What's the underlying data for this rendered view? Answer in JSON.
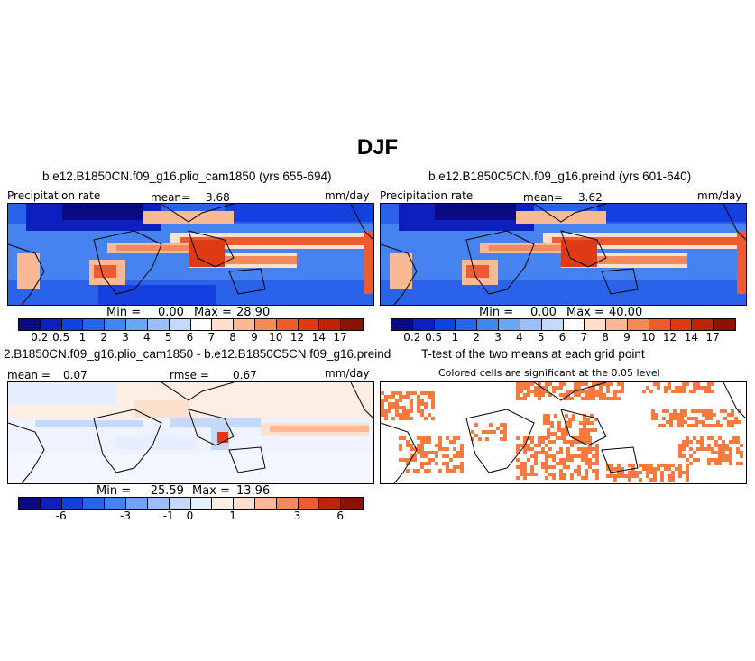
{
  "main_title": "DJF",
  "panels": {
    "top_left": {
      "title": "b.e12.B1850CN.f09_g16.plio_cam1850 (yrs 655-694)",
      "left_label": "Precipitation rate",
      "mean_label": "mean=",
      "mean_value": "3.68",
      "units": "mm/day",
      "min_label": "Min =",
      "min_value": "0.00",
      "max_label": "Max =",
      "max_value": "28.90"
    },
    "top_right": {
      "title": "b.e12.B1850C5CN.f09_g16.preind (yrs 601-640)",
      "left_label": "Precipitation rate",
      "mean_label": "mean=",
      "mean_value": "3.62",
      "units": "mm/day",
      "min_label": "Min =",
      "min_value": "0.00",
      "max_label": "Max =",
      "max_value": "40.00"
    },
    "bottom_left": {
      "title": "2.B1850CN.f09_g16.plio_cam1850 - b.e12.B1850C5CN.f09_g16.preind",
      "mean_label": "mean =",
      "mean_value": "0.07",
      "rmse_label": "rmse =",
      "rmse_value": "0.67",
      "units": "mm/day",
      "min_label": "Min =",
      "min_value": "-25.59",
      "max_label": "Max =",
      "max_value": "13.96"
    },
    "bottom_right": {
      "title": "T-test of the two means at each grid point",
      "subtitle": "Colored cells are significant at the 0.05 level",
      "color": "#f97a3e"
    }
  },
  "colorbars": {
    "precip": {
      "ticks": [
        "0.2",
        "0.5",
        "1",
        "2",
        "3",
        "4",
        "5",
        "6",
        "7",
        "8",
        "9",
        "10",
        "12",
        "14",
        "17"
      ],
      "colors": [
        "#0a0a82",
        "#0d1fbf",
        "#1540e0",
        "#2a62ea",
        "#4683f0",
        "#6fa3f5",
        "#9bc0f8",
        "#c4d9fb",
        "#ffffff",
        "#fde0cc",
        "#f9b995",
        "#f4895e",
        "#ee5a32",
        "#de3a16",
        "#c02408",
        "#8e1204"
      ]
    },
    "diff": {
      "ticks": [
        "-6",
        "-3",
        "-1",
        "0",
        "1",
        "3",
        "6"
      ],
      "colors": [
        "#0a0a82",
        "#0d1fbf",
        "#1540e0",
        "#2a62ea",
        "#4683f0",
        "#6fa3f5",
        "#9bc0f8",
        "#c4d9fb",
        "#e6efff",
        "#fdeee3",
        "#fde0cc",
        "#f9b995",
        "#f4895e",
        "#ee5a32",
        "#c02408",
        "#8e1204"
      ]
    }
  },
  "chart_data": [
    {
      "type": "heatmap",
      "title": "b.e12.B1850CN.f09_g16.plio_cam1850 (yrs 655-694)",
      "variable": "Precipitation rate",
      "units": "mm/day",
      "mean": 3.68,
      "min": 0.0,
      "max": 28.9,
      "levels": [
        0.2,
        0.5,
        1,
        2,
        3,
        4,
        5,
        6,
        7,
        8,
        9,
        10,
        12,
        14,
        17
      ]
    },
    {
      "type": "heatmap",
      "title": "b.e12.B1850C5CN.f09_g16.preind (yrs 601-640)",
      "variable": "Precipitation rate",
      "units": "mm/day",
      "mean": 3.62,
      "min": 0.0,
      "max": 40.0,
      "levels": [
        0.2,
        0.5,
        1,
        2,
        3,
        4,
        5,
        6,
        7,
        8,
        9,
        10,
        12,
        14,
        17
      ]
    },
    {
      "type": "heatmap",
      "title": "2.B1850CN.f09_g16.plio_cam1850 - b.e12.B1850C5CN.f09_g16.preind",
      "units": "mm/day",
      "mean": 0.07,
      "rmse": 0.67,
      "min": -25.59,
      "max": 13.96,
      "levels": [
        -6,
        -3,
        -1,
        0,
        1,
        3,
        6
      ]
    },
    {
      "type": "heatmap",
      "title": "T-test of the two means at each grid point",
      "subtitle": "Colored cells are significant at the 0.05 level"
    }
  ]
}
